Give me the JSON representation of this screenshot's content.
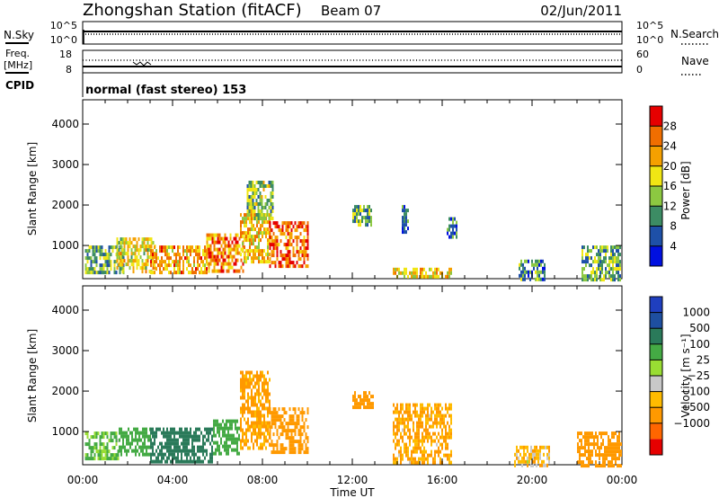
{
  "header": {
    "title": "Zhongshan Station (fitACF)",
    "beam": "Beam 07",
    "date": "02/Jun/2011"
  },
  "status_panels": {
    "nsky_label": "N.Sky",
    "nsearch_label": "N.Search",
    "nsky_ticks": [
      "10^5",
      "10^0"
    ],
    "nsearch_ticks": [
      "10^5",
      "10^0"
    ],
    "freq_label_1": "Freq.",
    "freq_label_2": "[MHz]",
    "freq_ticks": [
      "18",
      "8"
    ],
    "nave_label": "Nave",
    "nave_ticks": [
      "60",
      "0"
    ],
    "cpid_label": "CPID",
    "cpid_value": "normal (fast stereo) 153"
  },
  "colors": {
    "power_scale": [
      "#0010e0",
      "#1e50a8",
      "#3c8c64",
      "#8cc841",
      "#f0e614",
      "#f5a000",
      "#f06e00",
      "#e60000"
    ],
    "velocity_scale": [
      "#e60000",
      "#ff6600",
      "#ff9900",
      "#ffbb00",
      "#c8c8c8",
      "#99dd33",
      "#44aa44",
      "#2a7a5a",
      "#1e4fa0",
      "#1f3fbf"
    ]
  },
  "chart_data": [
    {
      "type": "heatmap",
      "name": "power",
      "ylabel": "Slant Range [km]",
      "ylim": [
        180,
        4600
      ],
      "yticks": [
        "1000",
        "2000",
        "3000",
        "4000"
      ],
      "xlim_hours": [
        0,
        24
      ],
      "colorbar_label": "Power [dB]",
      "colorbar_ticks": [
        "4",
        "8",
        "12",
        "16",
        "20",
        "24",
        "28"
      ],
      "colorbar_range": [
        0,
        32
      ],
      "blobs": [
        {
          "t0": 0.1,
          "t1": 1.8,
          "r0": 300,
          "r1": 1000,
          "v": 12
        },
        {
          "t0": 1.5,
          "t1": 3.2,
          "r0": 400,
          "r1": 1200,
          "v": 18
        },
        {
          "t0": 3.0,
          "t1": 5.5,
          "r0": 300,
          "r1": 1000,
          "v": 22
        },
        {
          "t0": 5.5,
          "t1": 7.2,
          "r0": 350,
          "r1": 1300,
          "v": 24
        },
        {
          "t0": 7.0,
          "t1": 8.3,
          "r0": 600,
          "r1": 1800,
          "v": 20
        },
        {
          "t0": 8.3,
          "t1": 10.0,
          "r0": 500,
          "r1": 1600,
          "v": 26
        },
        {
          "t0": 7.3,
          "t1": 8.5,
          "r0": 1700,
          "r1": 2600,
          "v": 14
        },
        {
          "t0": 12.0,
          "t1": 12.9,
          "r0": 1550,
          "r1": 2000,
          "v": 12
        },
        {
          "t0": 14.2,
          "t1": 14.5,
          "r0": 1300,
          "r1": 2000,
          "v": 8
        },
        {
          "t0": 13.8,
          "t1": 16.4,
          "r0": 200,
          "r1": 450,
          "v": 20
        },
        {
          "t0": 16.2,
          "t1": 16.6,
          "r0": 1200,
          "r1": 1700,
          "v": 8
        },
        {
          "t0": 19.4,
          "t1": 20.6,
          "r0": 200,
          "r1": 650,
          "v": 10
        },
        {
          "t0": 22.2,
          "t1": 23.9,
          "r0": 200,
          "r1": 1000,
          "v": 12
        }
      ]
    },
    {
      "type": "heatmap",
      "name": "velocity",
      "ylabel": "Slant Range [km]",
      "ylim": [
        180,
        4600
      ],
      "yticks": [
        "1000",
        "2000",
        "3000",
        "4000"
      ],
      "xlim_hours": [
        0,
        24
      ],
      "xticks": [
        "00:00",
        "04:00",
        "08:00",
        "12:00",
        "16:00",
        "20:00",
        "00:00"
      ],
      "xlabel": "Time UT",
      "colorbar_label": "Velocity [m s⁻¹]",
      "colorbar_ticks": [
        "1000",
        "500",
        "100",
        "25",
        "−25",
        "−100",
        "−500",
        "−1000"
      ],
      "blobs": [
        {
          "t0": 0.1,
          "t1": 1.6,
          "r0": 300,
          "r1": 1000,
          "v": 120
        },
        {
          "t0": 1.6,
          "t1": 3.0,
          "r0": 400,
          "r1": 1100,
          "v": 300
        },
        {
          "t0": 3.0,
          "t1": 5.8,
          "r0": 300,
          "r1": 1100,
          "v": 900
        },
        {
          "t0": 5.8,
          "t1": 7.0,
          "r0": 500,
          "r1": 1300,
          "v": 200
        },
        {
          "t0": 7.0,
          "t1": 8.3,
          "r0": 600,
          "r1": 2500,
          "v": -150
        },
        {
          "t0": 8.3,
          "t1": 10.0,
          "r0": 500,
          "r1": 1600,
          "v": -250
        },
        {
          "t0": 12.0,
          "t1": 12.9,
          "r0": 1600,
          "r1": 2000,
          "v": -200
        },
        {
          "t0": 13.8,
          "t1": 16.4,
          "r0": 200,
          "r1": 1700,
          "v": -120
        },
        {
          "t0": 19.2,
          "t1": 20.8,
          "r0": 200,
          "r1": 650,
          "v": -60
        },
        {
          "t0": 22.0,
          "t1": 24.0,
          "r0": 200,
          "r1": 1000,
          "v": -300
        }
      ]
    }
  ]
}
